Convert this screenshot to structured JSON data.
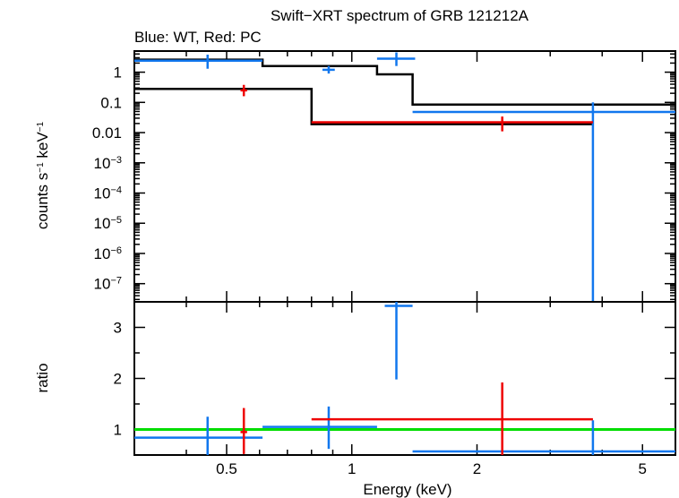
{
  "title": "Swift−XRT spectrum of GRB 121212A",
  "subtitle": "Blue: WT, Red: PC",
  "chart_data": [
    {
      "type": "scatter",
      "panel": "spectrum",
      "ylabel": {
        "base": "counts s",
        "sup1": "−1",
        "mid": " keV",
        "sup2": "−1"
      },
      "xscale": "log",
      "yscale": "log",
      "xlim": [
        0.3,
        6.0
      ],
      "ylim": [
        2.5e-08,
        5.0
      ],
      "yticks": [
        {
          "v": 1,
          "label": "1"
        },
        {
          "v": 0.1,
          "label": "0.1"
        },
        {
          "v": 0.01,
          "label": "0.01"
        },
        {
          "v": 0.001,
          "base": "10",
          "exp": "−3"
        },
        {
          "v": 0.0001,
          "base": "10",
          "exp": "−4"
        },
        {
          "v": 1e-05,
          "base": "10",
          "exp": "−5"
        },
        {
          "v": 1e-06,
          "base": "10",
          "exp": "−6"
        },
        {
          "v": 1e-07,
          "base": "10",
          "exp": "−7"
        }
      ],
      "series": [
        {
          "color": "#1177ee",
          "points": [
            {
              "x": 0.45,
              "xlo": 0.3,
              "xhi": 0.61,
              "y": 2.4,
              "ylo": 1.3,
              "yhi": 3.8
            },
            {
              "x": 0.88,
              "xlo": 0.85,
              "xhi": 0.91,
              "y": 1.2,
              "ylo": 0.9,
              "yhi": 1.6
            },
            {
              "x": 1.28,
              "xlo": 1.15,
              "xhi": 1.42,
              "y": 2.8,
              "ylo": 1.6,
              "yhi": 4.5
            },
            {
              "x": 3.8,
              "xlo": 1.4,
              "xhi": 6.0,
              "y": 0.048,
              "ylo": 2.5e-08,
              "yhi": 0.1
            }
          ]
        },
        {
          "color": "#ee0000",
          "points": [
            {
              "x": 0.55,
              "xlo": 0.54,
              "xhi": 0.56,
              "y": 0.25,
              "ylo": 0.16,
              "yhi": 0.38
            },
            {
              "x": 2.3,
              "xlo": 0.8,
              "xhi": 3.8,
              "y": 0.022,
              "ylo": 0.011,
              "yhi": 0.034
            }
          ]
        }
      ],
      "models": [
        {
          "color": "#000000",
          "steps": [
            {
              "x0": 0.3,
              "x1": 0.61,
              "y": 2.6
            },
            {
              "x0": 0.61,
              "x1": 1.15,
              "y": 1.6
            },
            {
              "x0": 1.15,
              "x1": 1.4,
              "y": 0.85
            },
            {
              "x0": 1.4,
              "x1": 6.0,
              "y": 0.085
            }
          ]
        },
        {
          "color": "#000000",
          "steps": [
            {
              "x0": 0.3,
              "x1": 0.8,
              "y": 0.28
            },
            {
              "x0": 0.8,
              "x1": 3.8,
              "y": 0.019
            }
          ]
        }
      ]
    },
    {
      "type": "scatter",
      "panel": "ratio",
      "xlabel": "Energy (keV)",
      "ylabel": "ratio",
      "xscale": "log",
      "xlim": [
        0.3,
        6.0
      ],
      "ylim": [
        0.5,
        3.5
      ],
      "xticks": [
        {
          "v": 0.5,
          "label": "0.5"
        },
        {
          "v": 1,
          "label": "1"
        },
        {
          "v": 2,
          "label": "2"
        },
        {
          "v": 5,
          "label": "5"
        }
      ],
      "yticks": [
        {
          "v": 1,
          "label": "1"
        },
        {
          "v": 2,
          "label": "2"
        },
        {
          "v": 3,
          "label": "3"
        }
      ],
      "reference_line": {
        "y": 1.0,
        "color": "#00dd00"
      },
      "series": [
        {
          "color": "#1177ee",
          "points": [
            {
              "x": 0.45,
              "xlo": 0.3,
              "xhi": 0.61,
              "y": 0.84,
              "ylo": 0.5,
              "yhi": 1.25
            },
            {
              "x": 0.88,
              "xlo": 0.61,
              "xhi": 1.15,
              "y": 1.05,
              "ylo": 0.62,
              "yhi": 1.45
            },
            {
              "x": 1.28,
              "xlo": 1.2,
              "xhi": 1.4,
              "y": 3.42,
              "ylo": 1.98,
              "yhi": 3.5
            },
            {
              "x": 3.8,
              "xlo": 1.4,
              "xhi": 6.0,
              "y": 0.57,
              "ylo": 0.5,
              "yhi": 1.18
            }
          ]
        },
        {
          "color": "#ee0000",
          "points": [
            {
              "x": 0.55,
              "xlo": 0.54,
              "xhi": 0.56,
              "y": 0.95,
              "ylo": 0.52,
              "yhi": 1.42
            },
            {
              "x": 2.3,
              "xlo": 0.8,
              "xhi": 3.8,
              "y": 1.2,
              "ylo": 0.5,
              "yhi": 1.92
            }
          ]
        }
      ]
    }
  ]
}
